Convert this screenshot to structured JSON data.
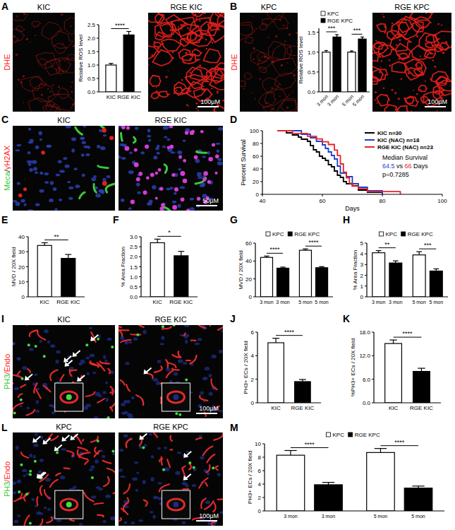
{
  "panel_labels": [
    "A",
    "B",
    "C",
    "D",
    "E",
    "F",
    "G",
    "H",
    "I",
    "J",
    "K",
    "L",
    "M"
  ],
  "images": [
    {
      "type": "dhe",
      "label": "KIC",
      "stain": [
        {
          "text": "DHE",
          "color": "#ff2020"
        }
      ]
    },
    {
      "type": "dhe",
      "label": "RGE KIC",
      "scale_bar": "100µM"
    },
    {
      "type": "dhe",
      "label": "KPC",
      "stain": [
        {
          "text": "DHE",
          "color": "#ff2020"
        }
      ]
    },
    {
      "type": "dhe",
      "label": "RGE KPC",
      "scale_bar": "100µM"
    },
    {
      "type": "meca",
      "label": "KIC",
      "stain": [
        {
          "text": "Meca",
          "color": "#33cc33"
        },
        {
          "text": "/",
          "color": "#000000"
        },
        {
          "text": "γH2AX",
          "color": "#ff2020"
        }
      ]
    },
    {
      "type": "meca",
      "label": "RGE KIC",
      "scale_bar": "50µM"
    },
    {
      "type": "ph3",
      "label": "KIC",
      "stain": [
        {
          "text": "PH3",
          "color": "#33cc33"
        },
        {
          "text": "/Endo",
          "color": "#ff2020"
        }
      ]
    },
    {
      "type": "ph3",
      "label": "RGE KIC",
      "scale_bar": "100µM"
    },
    {
      "type": "ph3",
      "label": "KPC",
      "stain": [
        {
          "text": "PH3",
          "color": "#33cc33"
        },
        {
          "text": "/Endo",
          "color": "#ff2020"
        }
      ]
    },
    {
      "type": "ph3",
      "label": "RGE KPC",
      "scale_bar": "100µM"
    }
  ],
  "chart_data": [
    {
      "type": "bar",
      "ylabel": "Relative ROS level",
      "categories": [
        "KIC",
        "RGE KIC"
      ],
      "values": [
        1.0,
        2.12
      ],
      "errors": [
        0.06,
        0.13
      ],
      "colors": [
        "#ffffff",
        "#000000"
      ],
      "ylim": [
        0,
        2.5
      ],
      "yticks": [
        {
          "value": 0,
          "label": "0.0"
        },
        0.5,
        {
          "value": 1,
          "label": "1.0"
        },
        1.5,
        {
          "value": 2,
          "label": "2.0"
        },
        2.5
      ],
      "significance": [
        "****"
      ]
    },
    {
      "type": "bar",
      "ylabel": "Relative ROS level",
      "categories": [
        "3 mon",
        "3 mon",
        "5 mon",
        "5 mon"
      ],
      "series": [
        {
          "name": "KPC",
          "color": "#ffffff",
          "values": [
            1.0,
            null,
            1.0,
            null
          ],
          "errors": [
            0.04,
            null,
            0.03,
            null
          ]
        },
        {
          "name": "RGE KPC",
          "color": "#000000",
          "values": [
            null,
            1.38,
            null,
            1.33
          ],
          "errors": [
            null,
            0.06,
            null,
            0.05
          ]
        }
      ],
      "ylim": [
        0,
        1.6
      ],
      "yticks": [
        {
          "value": 0,
          "label": "0.0"
        },
        0.5,
        {
          "value": 1,
          "label": "1.0"
        },
        1.5
      ],
      "legend": "top-left",
      "significance": [
        "***",
        "***"
      ]
    },
    {
      "type": "line",
      "line_style": "step",
      "xlabel": "Days",
      "ylabel": "Percent Survival",
      "xlim": [
        40,
        100
      ],
      "xticks": [
        40,
        60,
        80,
        100
      ],
      "ylim": [
        0,
        100
      ],
      "yticks": [
        0,
        20,
        40,
        60,
        80,
        100
      ],
      "legend": "top-right",
      "series": [
        {
          "name": "KIC n=30",
          "color": "#000000",
          "x": [
            45,
            48,
            50,
            52,
            53,
            55,
            56,
            57,
            58,
            59,
            60,
            61,
            62,
            63,
            64,
            65,
            66,
            67,
            68,
            70,
            72,
            75,
            80
          ],
          "values": [
            100,
            96.7,
            93.3,
            90,
            86.7,
            83.3,
            76.7,
            70,
            66.7,
            60,
            56.7,
            53.3,
            46.7,
            43.3,
            36.7,
            30,
            26.7,
            20,
            16.7,
            13.3,
            6.7,
            3.3,
            0
          ]
        },
        {
          "name": "KIC (NAC) n=18",
          "color": "#1f3fcc",
          "x": [
            45,
            53,
            56,
            58,
            60,
            61,
            62,
            63,
            64,
            65,
            66,
            68,
            70,
            72,
            75,
            80
          ],
          "values": [
            100,
            94.4,
            88.9,
            83.3,
            77.8,
            72.2,
            66.7,
            61.1,
            55.6,
            44.4,
            33.3,
            27.8,
            16.7,
            11.1,
            5.6,
            0
          ]
        },
        {
          "name": "RGE KIC (NAC) n=23",
          "color": "#e8212b",
          "x": [
            45,
            50,
            55,
            58,
            60,
            62,
            64,
            65,
            66,
            67,
            68,
            69,
            70,
            72,
            75,
            86
          ],
          "values": [
            100,
            95.7,
            91.3,
            87,
            82.6,
            78.3,
            69.6,
            60.9,
            47.8,
            34.8,
            26.1,
            17.4,
            13,
            8.7,
            4.3,
            0
          ]
        }
      ],
      "annotations": [
        [
          {
            "text": "Median Survival",
            "color": "#000000"
          }
        ],
        [
          {
            "text": "64.5",
            "color": "#1f3fcc"
          },
          {
            "text": " vs ",
            "color": "#000000"
          },
          {
            "text": "66",
            "color": "#e8212b"
          },
          {
            "text": " Days",
            "color": "#000000"
          }
        ],
        [
          {
            "text": "p=0.7285",
            "color": "#000000"
          }
        ]
      ]
    },
    {
      "type": "bar",
      "ylabel": "MVD / 20X field",
      "categories": [
        "KIC",
        "RGE KIC"
      ],
      "values": [
        34.2,
        25.6
      ],
      "errors": [
        1.8,
        2.6
      ],
      "colors": [
        "#ffffff",
        "#000000"
      ],
      "ylim": [
        0,
        40
      ],
      "yticks": [
        0,
        10,
        20,
        30,
        40
      ],
      "significance": [
        "**"
      ]
    },
    {
      "type": "bar",
      "ylabel": "% Area Fraction",
      "categories": [
        "KIC",
        "RGE KIC"
      ],
      "values": [
        2.7,
        2.05
      ],
      "errors": [
        0.18,
        0.22
      ],
      "colors": [
        "#ffffff",
        "#000000"
      ],
      "ylim": [
        0,
        3
      ],
      "yticks": [
        {
          "value": 0,
          "label": "0.0"
        },
        0.5,
        {
          "value": 1,
          "label": "1.0"
        },
        1.5,
        {
          "value": 2,
          "label": "2.0"
        },
        2.5,
        {
          "value": 3,
          "label": "3.0"
        }
      ],
      "significance": [
        "*"
      ]
    },
    {
      "type": "bar",
      "ylabel": "MVD / 20X field",
      "categories": [
        "3 mon",
        "3 mon",
        "5 mon",
        "5 mon"
      ],
      "series": [
        {
          "name": "KPC",
          "color": "#ffffff",
          "values": [
            44,
            null,
            52,
            null
          ],
          "errors": [
            1.5,
            null,
            1.5,
            null
          ]
        },
        {
          "name": "RGE KPC",
          "color": "#000000",
          "values": [
            null,
            32,
            null,
            32.5
          ],
          "errors": [
            null,
            1.2,
            null,
            1.2
          ]
        }
      ],
      "ylim": [
        0,
        60
      ],
      "yticks": [
        0,
        20,
        40,
        60
      ],
      "legend": "top",
      "significance": [
        "****",
        "****"
      ]
    },
    {
      "type": "bar",
      "ylabel": "% Area Fraction",
      "categories": [
        "3 mon",
        "3 mon",
        "5 mon",
        "5 mon"
      ],
      "series": [
        {
          "name": "KPC",
          "color": "#ffffff",
          "values": [
            4.1,
            null,
            3.9,
            null
          ],
          "errors": [
            0.2,
            null,
            0.3,
            null
          ]
        },
        {
          "name": "RGE KPC",
          "color": "#000000",
          "values": [
            null,
            3.15,
            null,
            2.4
          ],
          "errors": [
            null,
            0.2,
            null,
            0.2
          ]
        }
      ],
      "ylim": [
        0,
        5
      ],
      "yticks": [
        0,
        1,
        2,
        3,
        4,
        5
      ],
      "legend": "top",
      "significance": [
        "**",
        "***"
      ]
    },
    {
      "type": "bar",
      "ylabel": "PH3+ ECs / 20X field",
      "categories": [
        "KIC",
        "RGE KIC"
      ],
      "values": [
        5.1,
        1.8
      ],
      "errors": [
        0.38,
        0.18
      ],
      "colors": [
        "#ffffff",
        "#000000"
      ],
      "ylim": [
        0,
        6
      ],
      "yticks": [
        0,
        2,
        4,
        6
      ],
      "significance": [
        "****"
      ]
    },
    {
      "type": "bar",
      "ylabel": "%PH3+ ECs / 20X field",
      "categories": [
        "KIC",
        "RGE KIC"
      ],
      "values": [
        15.1,
        8.0
      ],
      "errors": [
        0.9,
        0.8
      ],
      "colors": [
        "#ffffff",
        "#000000"
      ],
      "ylim": [
        0,
        18
      ],
      "yticks": [
        {
          "value": 0,
          "label": "0.0"
        },
        {
          "value": 6,
          "label": "6.0"
        },
        {
          "value": 12,
          "label": "12.0"
        },
        {
          "value": 18,
          "label": "18.0"
        }
      ],
      "significance": [
        "****"
      ]
    },
    {
      "type": "bar",
      "ylabel": "PH3+ ECs / 20X field",
      "categories": [
        "3 mon",
        "3 mon",
        "5 mon",
        "5 mon"
      ],
      "series": [
        {
          "name": "KPC",
          "color": "#ffffff",
          "values": [
            8.3,
            null,
            8.7,
            null
          ],
          "errors": [
            0.7,
            null,
            0.6,
            null
          ]
        },
        {
          "name": "RGE KPC",
          "color": "#000000",
          "values": [
            null,
            3.9,
            null,
            3.4
          ],
          "errors": [
            null,
            0.35,
            null,
            0.3
          ]
        }
      ],
      "ylim": [
        0,
        10
      ],
      "yticks": [
        0,
        2,
        4,
        6,
        8,
        10
      ],
      "legend": "top",
      "significance": [
        "****",
        "****"
      ]
    }
  ]
}
